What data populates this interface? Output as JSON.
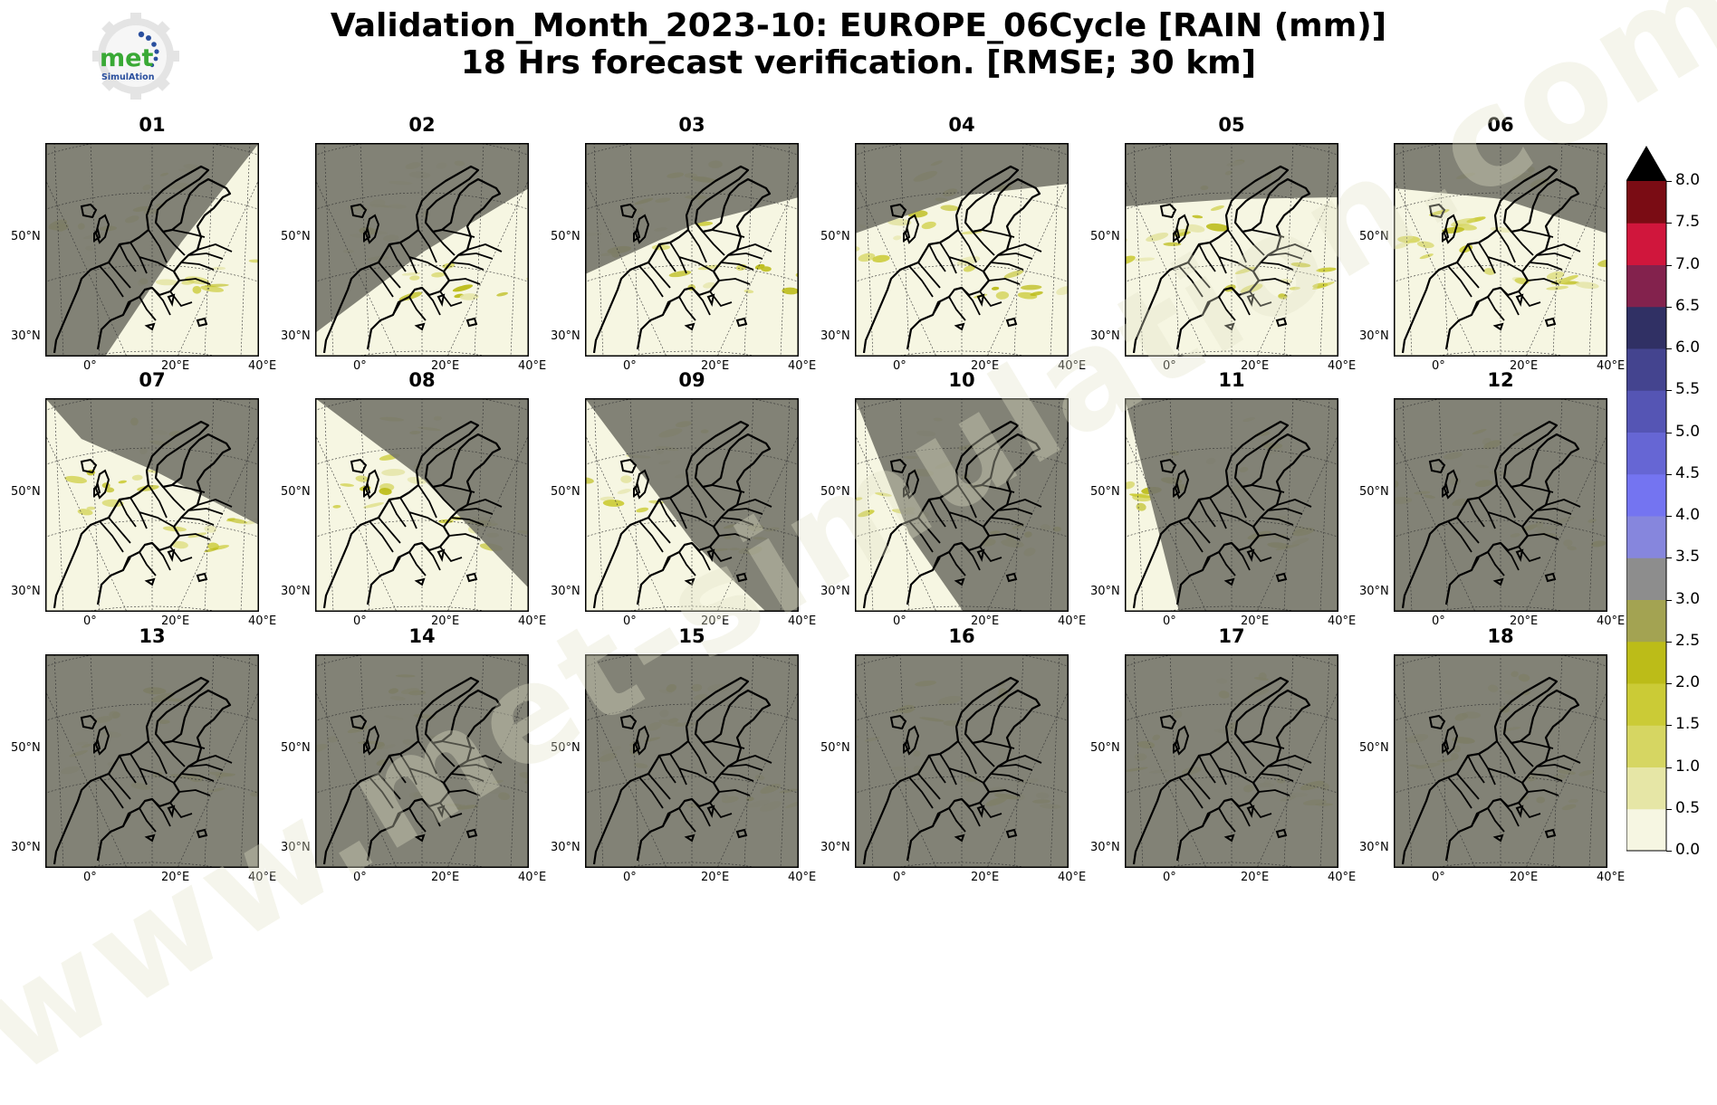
{
  "title": {
    "line1": "Validation_Month_2023-10: EUROPE_06Cycle [RAIN (mm)]",
    "line2": "18 Hrs forecast verification.  [RMSE; 30 km]"
  },
  "logo": {
    "text_main": "met",
    "text_sub": "SimulAtion"
  },
  "watermark": "www.met-simulation.com",
  "map": {
    "lat_labels": [
      "50°N",
      "30°N"
    ],
    "lon_labels": [
      "0°",
      "20°E",
      "40°E"
    ],
    "land_outline_color": "#000000",
    "night_color": "#77776c",
    "day_color": "#f6f6e2"
  },
  "panels": [
    {
      "label": "01",
      "night_fraction": 0.55
    },
    {
      "label": "02",
      "night_fraction": 0.5
    },
    {
      "label": "03",
      "night_fraction": 0.45
    },
    {
      "label": "04",
      "night_fraction": 0.4
    },
    {
      "label": "05",
      "night_fraction": 0.3
    },
    {
      "label": "06",
      "night_fraction": 0.35
    },
    {
      "label": "07",
      "night_fraction": 0.35
    },
    {
      "label": "08",
      "night_fraction": 0.4
    },
    {
      "label": "09",
      "night_fraction": 0.55
    },
    {
      "label": "10",
      "night_fraction": 0.7
    },
    {
      "label": "11",
      "night_fraction": 0.85
    },
    {
      "label": "12",
      "night_fraction": 1.0
    },
    {
      "label": "13",
      "night_fraction": 1.0
    },
    {
      "label": "14",
      "night_fraction": 1.0
    },
    {
      "label": "15",
      "night_fraction": 1.0
    },
    {
      "label": "16",
      "night_fraction": 1.0
    },
    {
      "label": "17",
      "night_fraction": 1.0
    },
    {
      "label": "18",
      "night_fraction": 1.0
    }
  ],
  "colorbar": {
    "unit": "mm",
    "ticks": [
      "0.0",
      "0.5",
      "1.0",
      "1.5",
      "2.0",
      "2.5",
      "3.0",
      "3.5",
      "4.0",
      "4.5",
      "5.0",
      "5.5",
      "6.0",
      "6.5",
      "7.0",
      "7.5",
      "8.0"
    ],
    "colors": [
      "#f6f6e2",
      "#e6e6a6",
      "#d6d662",
      "#cbcb36",
      "#bcbc18",
      "#a3a352",
      "#8d8d8d",
      "#8686dd",
      "#7474f1",
      "#6666d4",
      "#5555b4",
      "#44448f",
      "#303064",
      "#83224d",
      "#d0163c",
      "#7a0c14"
    ],
    "extend_color": "#000000"
  }
}
